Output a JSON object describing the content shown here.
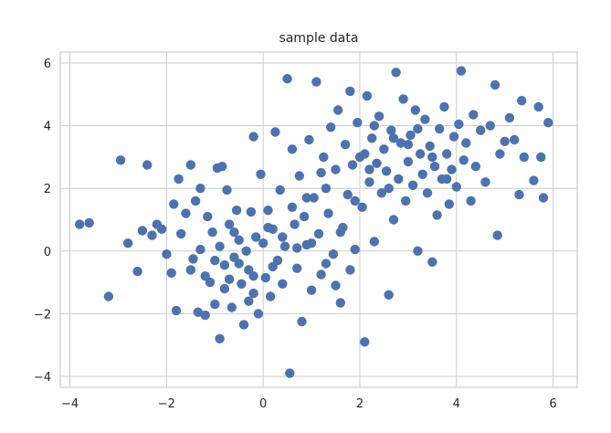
{
  "chart_data": {
    "type": "scatter",
    "title": "sample data",
    "xlabel": "",
    "ylabel": "",
    "xlim": [
      -4.2,
      6.5
    ],
    "ylim": [
      -4.35,
      6.35
    ],
    "xticks": [
      -4,
      -2,
      0,
      2,
      4,
      6
    ],
    "yticks": [
      -4,
      -2,
      0,
      2,
      4,
      6
    ],
    "xtick_labels": [
      "−4",
      "−2",
      "0",
      "2",
      "4",
      "6"
    ],
    "ytick_labels": [
      "−4",
      "−2",
      "0",
      "2",
      "4",
      "6"
    ],
    "grid": true,
    "point_color": "#4c72b0",
    "grid_color": "#cccccc",
    "points": [
      [
        -3.8,
        0.85
      ],
      [
        -3.6,
        0.9
      ],
      [
        -3.2,
        -1.45
      ],
      [
        -2.95,
        2.9
      ],
      [
        -2.8,
        0.25
      ],
      [
        -2.6,
        -0.65
      ],
      [
        -2.5,
        0.65
      ],
      [
        -2.4,
        2.75
      ],
      [
        -2.3,
        0.5
      ],
      [
        -2.2,
        0.85
      ],
      [
        -2.1,
        0.7
      ],
      [
        -2.0,
        -0.1
      ],
      [
        -1.9,
        -0.7
      ],
      [
        -1.7,
        0.55
      ],
      [
        -1.85,
        1.5
      ],
      [
        -1.8,
        -1.9
      ],
      [
        -1.75,
        2.3
      ],
      [
        -1.6,
        1.2
      ],
      [
        -1.5,
        2.75
      ],
      [
        -1.45,
        -0.25
      ],
      [
        -1.4,
        1.6
      ],
      [
        -1.3,
        0.05
      ],
      [
        -1.35,
        -1.95
      ],
      [
        -1.3,
        2.0
      ],
      [
        -1.2,
        -2.05
      ],
      [
        -1.15,
        1.1
      ],
      [
        -1.1,
        -1.0
      ],
      [
        -1.05,
        0.6
      ],
      [
        -1.0,
        -1.7
      ],
      [
        -0.95,
        2.65
      ],
      [
        -0.9,
        0.15
      ],
      [
        -0.9,
        -2.8
      ],
      [
        -0.85,
        2.7
      ],
      [
        -0.8,
        -0.45
      ],
      [
        -0.75,
        1.95
      ],
      [
        -0.7,
        -0.9
      ],
      [
        -0.7,
        0.85
      ],
      [
        -0.65,
        -1.8
      ],
      [
        -0.6,
        -0.2
      ],
      [
        -0.55,
        1.3
      ],
      [
        -0.5,
        0.35
      ],
      [
        -0.45,
        -1.05
      ],
      [
        -0.4,
        -2.35
      ],
      [
        -0.35,
        0.0
      ],
      [
        -0.3,
        -0.6
      ],
      [
        -0.25,
        1.25
      ],
      [
        -0.2,
        3.65
      ],
      [
        -0.2,
        -1.35
      ],
      [
        -0.15,
        0.45
      ],
      [
        -0.1,
        -2.0
      ],
      [
        -0.05,
        2.45
      ],
      [
        0.0,
        0.25
      ],
      [
        0.05,
        -0.85
      ],
      [
        0.1,
        1.3
      ],
      [
        0.15,
        -1.45
      ],
      [
        0.2,
        0.7
      ],
      [
        0.25,
        3.8
      ],
      [
        0.3,
        -0.3
      ],
      [
        0.35,
        1.95
      ],
      [
        0.4,
        -1.05
      ],
      [
        0.45,
        0.15
      ],
      [
        0.5,
        5.5
      ],
      [
        0.55,
        -3.9
      ],
      [
        0.6,
        3.25
      ],
      [
        0.65,
        0.85
      ],
      [
        0.7,
        -0.55
      ],
      [
        0.75,
        2.4
      ],
      [
        0.8,
        -2.25
      ],
      [
        0.85,
        1.1
      ],
      [
        0.9,
        0.2
      ],
      [
        0.95,
        3.55
      ],
      [
        1.0,
        -1.25
      ],
      [
        1.05,
        1.7
      ],
      [
        1.1,
        5.4
      ],
      [
        1.15,
        0.55
      ],
      [
        1.2,
        -0.75
      ],
      [
        1.25,
        3.0
      ],
      [
        1.3,
        2.0
      ],
      [
        1.35,
        1.2
      ],
      [
        1.4,
        3.95
      ],
      [
        1.45,
        -0.1
      ],
      [
        1.5,
        2.6
      ],
      [
        1.55,
        4.5
      ],
      [
        1.6,
        -1.65
      ],
      [
        1.65,
        0.75
      ],
      [
        1.7,
        3.4
      ],
      [
        1.75,
        1.8
      ],
      [
        1.8,
        5.1
      ],
      [
        1.85,
        2.75
      ],
      [
        1.9,
        0.05
      ],
      [
        1.95,
        4.1
      ],
      [
        2.0,
        3.0
      ],
      [
        2.05,
        1.4
      ],
      [
        2.1,
        -2.9
      ],
      [
        2.15,
        4.95
      ],
      [
        2.2,
        2.2
      ],
      [
        2.25,
        3.6
      ],
      [
        2.3,
        0.3
      ],
      [
        2.35,
        2.8
      ],
      [
        2.4,
        4.3
      ],
      [
        2.45,
        1.85
      ],
      [
        2.5,
        3.25
      ],
      [
        2.55,
        2.55
      ],
      [
        2.6,
        -1.4
      ],
      [
        2.65,
        3.85
      ],
      [
        2.7,
        1.0
      ],
      [
        2.75,
        5.7
      ],
      [
        2.8,
        2.3
      ],
      [
        2.85,
        3.45
      ],
      [
        2.9,
        4.85
      ],
      [
        2.95,
        1.6
      ],
      [
        3.0,
        2.85
      ],
      [
        3.05,
        3.7
      ],
      [
        3.1,
        2.1
      ],
      [
        3.15,
        4.5
      ],
      [
        3.2,
        0.0
      ],
      [
        3.25,
        3.1
      ],
      [
        3.3,
        2.45
      ],
      [
        3.35,
        4.2
      ],
      [
        3.4,
        1.85
      ],
      [
        3.45,
        3.35
      ],
      [
        3.5,
        -0.35
      ],
      [
        3.55,
        2.7
      ],
      [
        3.6,
        1.15
      ],
      [
        3.65,
        3.9
      ],
      [
        3.7,
        2.3
      ],
      [
        3.75,
        4.6
      ],
      [
        3.8,
        3.1
      ],
      [
        3.85,
        1.5
      ],
      [
        3.9,
        2.6
      ],
      [
        3.95,
        3.65
      ],
      [
        4.0,
        2.05
      ],
      [
        4.05,
        4.05
      ],
      [
        4.1,
        5.75
      ],
      [
        4.15,
        2.9
      ],
      [
        4.2,
        3.45
      ],
      [
        4.3,
        1.6
      ],
      [
        4.35,
        4.35
      ],
      [
        4.4,
        2.7
      ],
      [
        4.5,
        3.85
      ],
      [
        4.6,
        2.2
      ],
      [
        4.7,
        4.0
      ],
      [
        4.8,
        5.3
      ],
      [
        4.85,
        0.5
      ],
      [
        4.9,
        3.1
      ],
      [
        5.0,
        3.5
      ],
      [
        5.1,
        4.25
      ],
      [
        5.2,
        3.55
      ],
      [
        5.3,
        1.8
      ],
      [
        5.35,
        4.8
      ],
      [
        5.4,
        3.0
      ],
      [
        5.6,
        2.25
      ],
      [
        5.7,
        4.6
      ],
      [
        5.75,
        3.0
      ],
      [
        5.8,
        1.7
      ],
      [
        5.9,
        4.1
      ],
      [
        -1.0,
        -0.3
      ],
      [
        -0.6,
        0.6
      ],
      [
        0.1,
        0.75
      ],
      [
        0.4,
        0.45
      ],
      [
        0.7,
        0.1
      ],
      [
        1.0,
        0.25
      ],
      [
        1.3,
        -0.4
      ],
      [
        1.6,
        0.6
      ],
      [
        1.9,
        1.6
      ],
      [
        2.2,
        2.6
      ],
      [
        2.6,
        2.0
      ],
      [
        3.0,
        3.4
      ],
      [
        2.1,
        3.1
      ],
      [
        2.3,
        4.0
      ],
      [
        2.7,
        3.6
      ],
      [
        3.2,
        3.9
      ],
      [
        3.5,
        3.0
      ],
      [
        3.8,
        2.3
      ],
      [
        1.2,
        2.5
      ],
      [
        0.9,
        1.7
      ],
      [
        0.6,
        1.4
      ],
      [
        0.2,
        -0.5
      ],
      [
        -0.2,
        -0.8
      ],
      [
        -0.5,
        -0.4
      ],
      [
        -1.5,
        -0.6
      ],
      [
        -1.2,
        -0.8
      ],
      [
        -0.8,
        -1.2
      ],
      [
        -0.3,
        -1.6
      ],
      [
        1.5,
        -1.1
      ],
      [
        1.8,
        -0.6
      ]
    ]
  }
}
